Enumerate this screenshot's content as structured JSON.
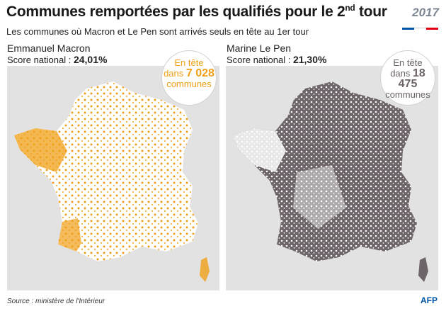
{
  "title": "Communes remportées par les qualifiés pour le 2",
  "title_sup": "nd",
  "title_end": " tour",
  "subtitle": "Les communes où Macron et Le Pen sont arrivés seuls en tête au 1er tour",
  "badge": "2017",
  "source": "Source : ministère de l'Intérieur",
  "credit": "AFP",
  "colors": {
    "macron": "#f0a018",
    "lepen": "#6c6468",
    "panel_bg": "#e2e2e2"
  },
  "candidates": [
    {
      "name": "Emmanuel Macron",
      "score_label": "Score national :",
      "score": "24,01%",
      "bubble_line1": "En tête",
      "bubble_line2": "dans",
      "bubble_count": "7 028",
      "bubble_line3": "communes"
    },
    {
      "name": "Marine Le Pen",
      "score_label": "Score national :",
      "score": "21,30%",
      "bubble_line1": "En tête",
      "bubble_line2": "dans",
      "bubble_count": "18 475",
      "bubble_line3": "communes"
    }
  ]
}
